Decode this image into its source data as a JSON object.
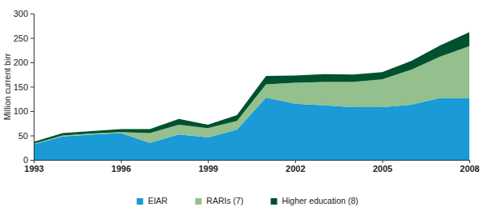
{
  "chart_data": {
    "type": "area",
    "stacked": true,
    "y_label": "Million current birr",
    "x": [
      1993,
      1994,
      1995,
      1996,
      1997,
      1998,
      1999,
      2000,
      2001,
      2002,
      2003,
      2004,
      2005,
      2006,
      2007,
      2008
    ],
    "series": [
      {
        "name": "EIAR",
        "color": "#1a9ad6",
        "values": [
          32,
          48,
          52,
          55,
          35,
          52,
          46,
          62,
          128,
          115,
          112,
          108,
          108,
          113,
          127,
          127
        ]
      },
      {
        "name": "RARIs (7)",
        "color": "#93c08c",
        "values": [
          1,
          2,
          2,
          2,
          20,
          20,
          19,
          18,
          27,
          43,
          48,
          52,
          57,
          72,
          85,
          106
        ]
      },
      {
        "name": "Higher education (8)",
        "color": "#00512f",
        "values": [
          4,
          5,
          5,
          6,
          8,
          12,
          7,
          12,
          17,
          15,
          16,
          15,
          15,
          18,
          23,
          29
        ]
      }
    ],
    "xlim": [
      1993,
      2008
    ],
    "xticks": [
      1993,
      1996,
      1999,
      2002,
      2005,
      2008
    ],
    "ylim": [
      0,
      300
    ],
    "yticks": [
      0,
      50,
      100,
      150,
      200,
      250,
      300
    ],
    "grid": false,
    "legend": "bottom"
  }
}
